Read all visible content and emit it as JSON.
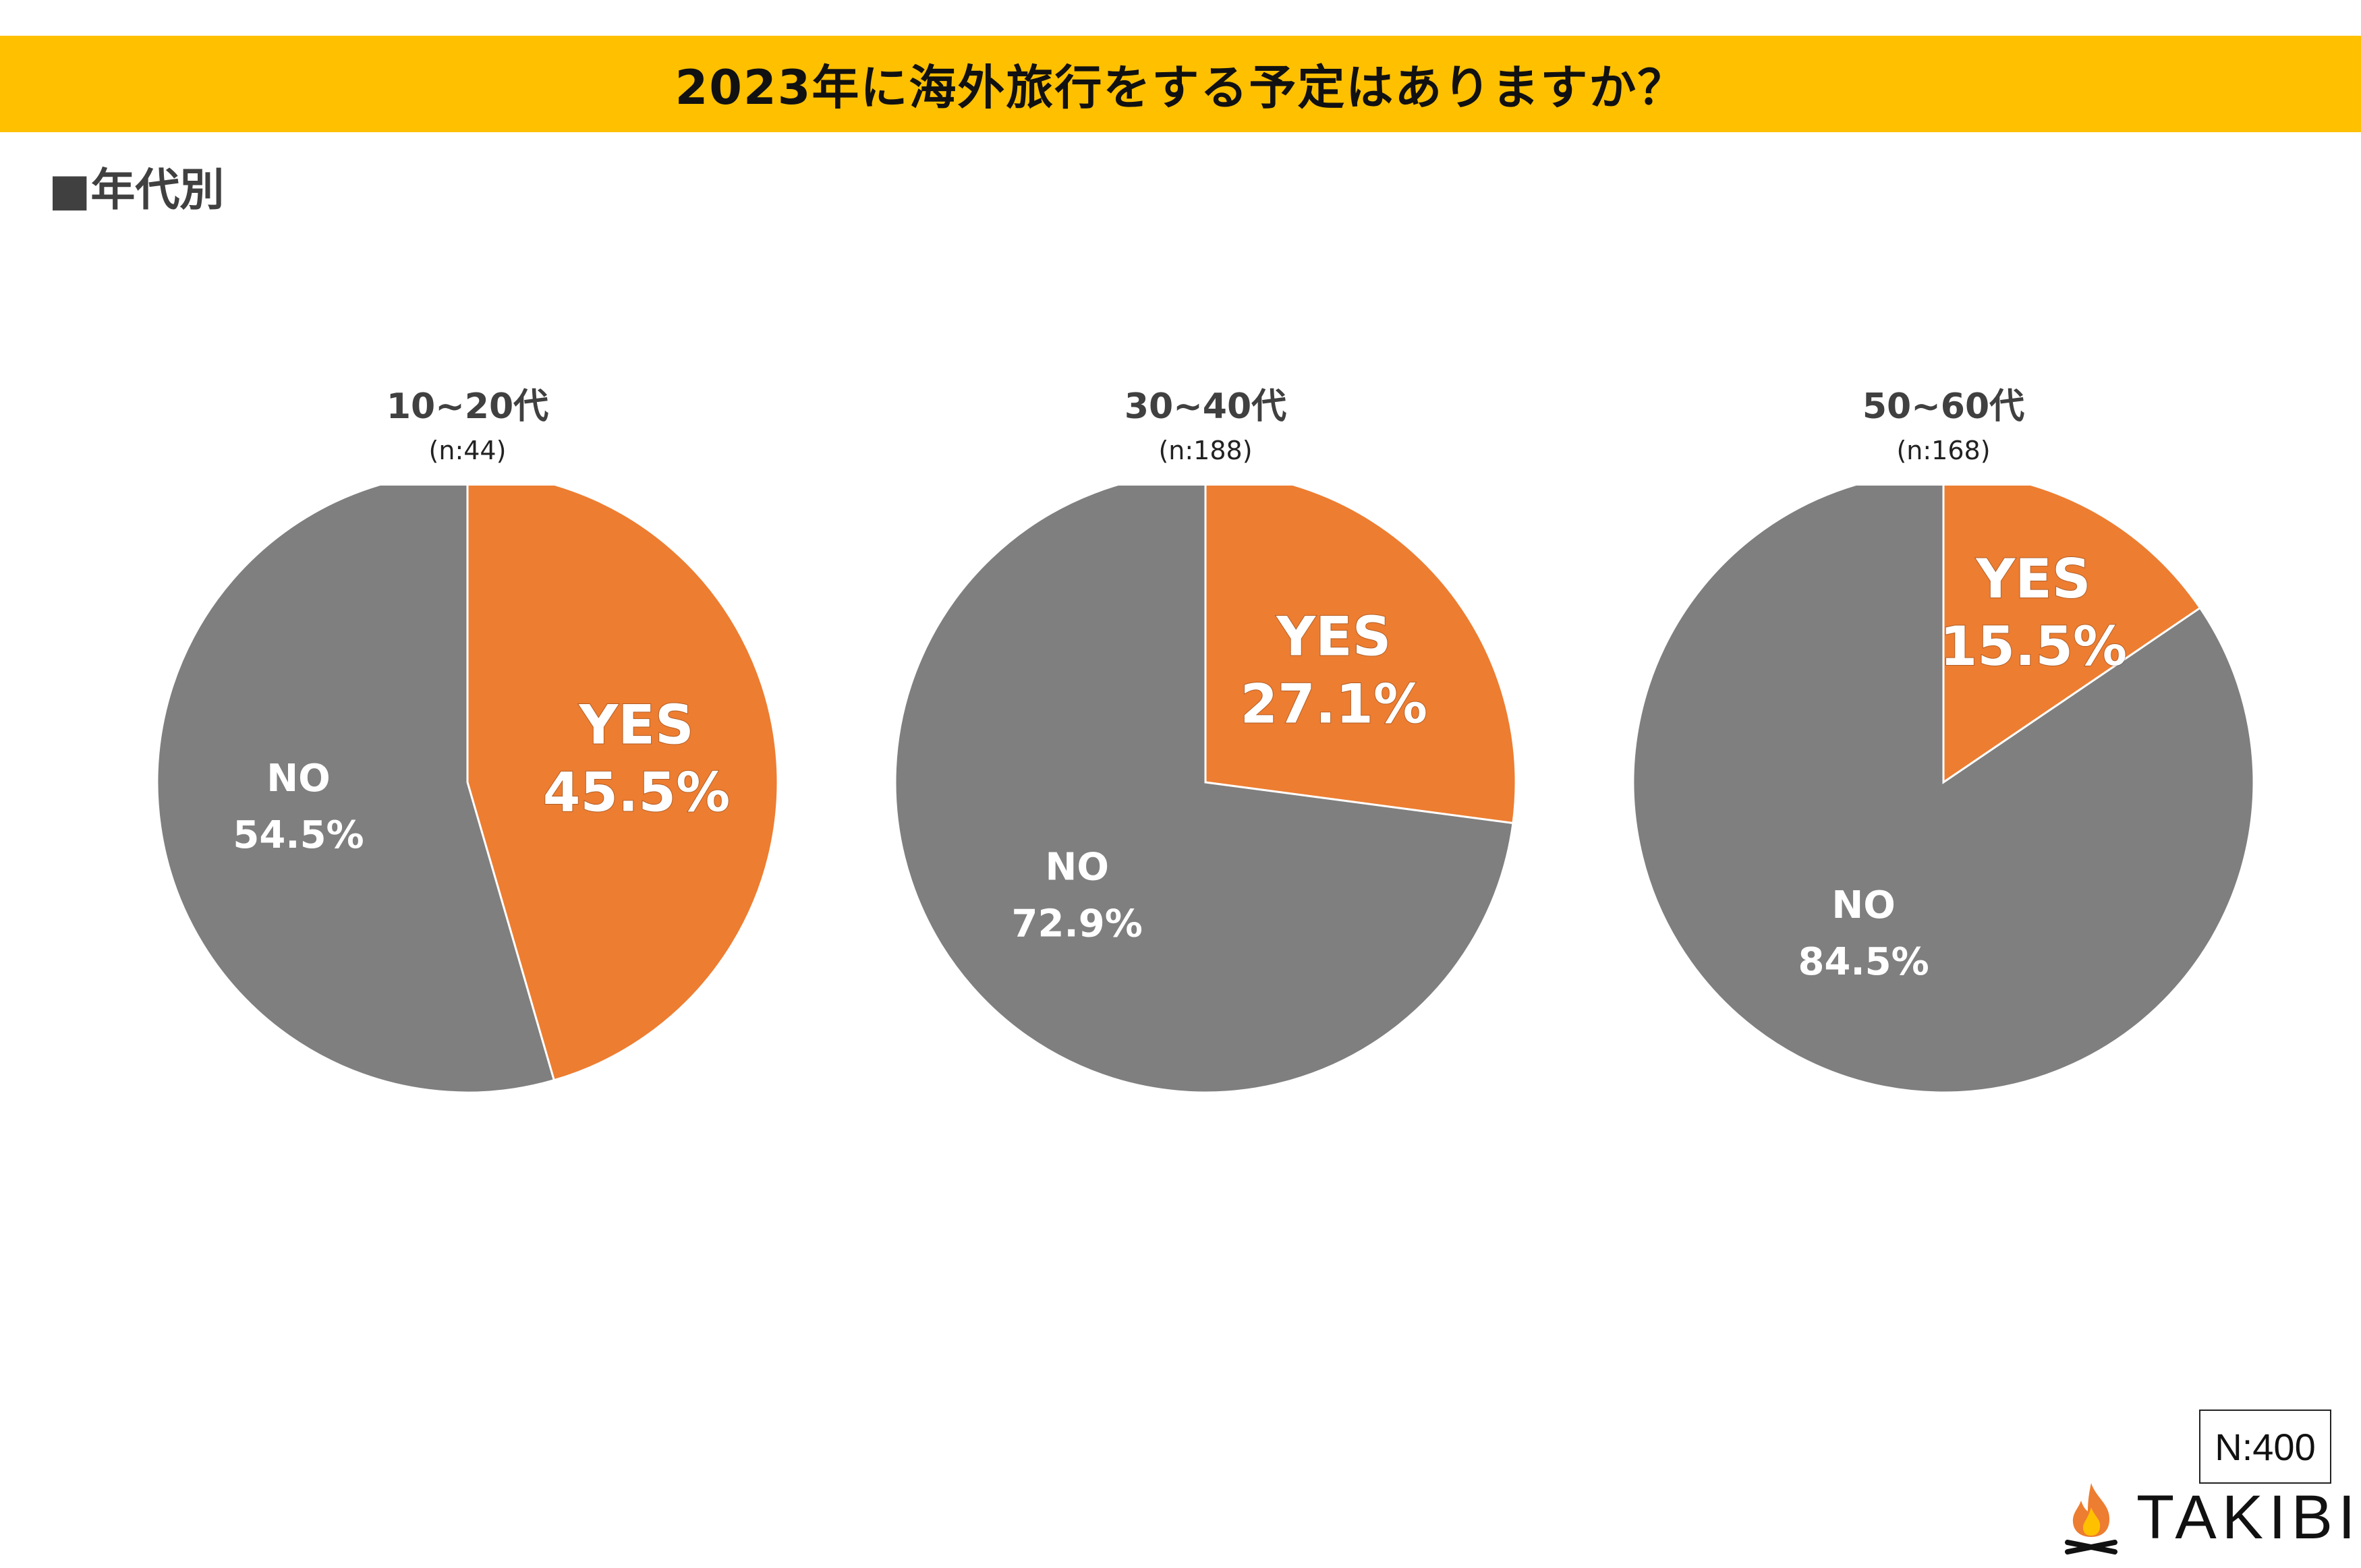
{
  "title": "2023年に海外旅行をする予定はありますか？",
  "section_label": "■年代別",
  "total_n": "N:400",
  "brand": "TAKIBI",
  "colors": {
    "yes": "#ED7D31",
    "no": "#7F7F7F",
    "banner": "#FFC000"
  },
  "chart_data": [
    {
      "type": "pie",
      "title": "10~20代",
      "n": "(n:44)",
      "slices": [
        {
          "label": "YES",
          "value": 45.5,
          "display": "45.5%"
        },
        {
          "label": "NO",
          "value": 54.5,
          "display": "54.5%"
        }
      ]
    },
    {
      "type": "pie",
      "title": "30~40代",
      "n": "(n:188)",
      "slices": [
        {
          "label": "YES",
          "value": 27.1,
          "display": "27.1%"
        },
        {
          "label": "NO",
          "value": 72.9,
          "display": "72.9%"
        }
      ]
    },
    {
      "type": "pie",
      "title": "50~60代",
      "n": "(n:168)",
      "slices": [
        {
          "label": "YES",
          "value": 15.5,
          "display": "15.5%"
        },
        {
          "label": "NO",
          "value": 84.5,
          "display": "84.5%"
        }
      ]
    }
  ]
}
